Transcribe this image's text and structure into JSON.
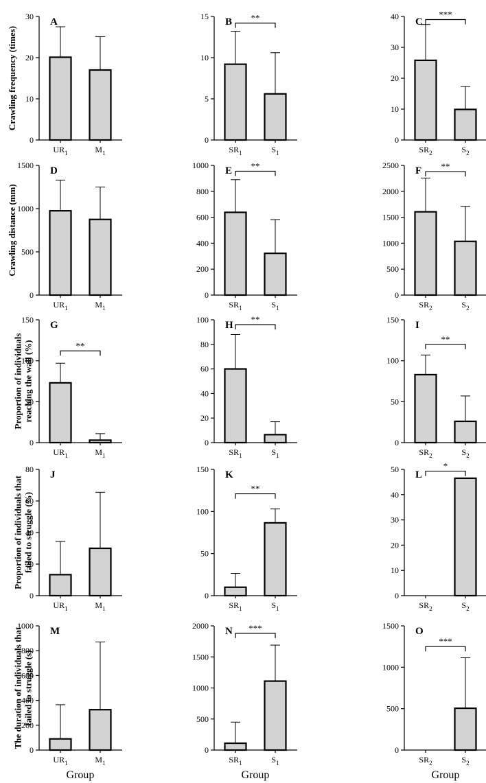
{
  "figure": {
    "row_ylabels": [
      [
        "Crawling frequency (times)"
      ],
      [
        "Crawling distance (mm)"
      ],
      [
        "Proportion of individuals",
        "reaching the wall (%)"
      ],
      [
        "Proportion of individuals that",
        "failed to struggle (%)"
      ],
      [
        "The duration of individuals that",
        "failed to struggle (s)"
      ]
    ],
    "xlabel": "Group",
    "colors": {
      "bar_fill": "#d3d3d3",
      "stroke": "#000000"
    }
  },
  "chart_data": [
    {
      "type": "bar",
      "panel": "A",
      "categories": [
        {
          "base": "UR",
          "sub": "1"
        },
        {
          "base": "M",
          "sub": "1"
        }
      ],
      "values": [
        20.1,
        17.0
      ],
      "errors": [
        7.4,
        8.1
      ],
      "ylim": [
        0,
        30
      ],
      "yticks": [
        0,
        10,
        20,
        30
      ],
      "significance": null
    },
    {
      "type": "bar",
      "panel": "B",
      "categories": [
        {
          "base": "SR",
          "sub": "1"
        },
        {
          "base": "S",
          "sub": "1"
        }
      ],
      "values": [
        9.2,
        5.6
      ],
      "errors": [
        4.0,
        5.0
      ],
      "ylim": [
        0,
        15
      ],
      "yticks": [
        0,
        5,
        10,
        15
      ],
      "significance": {
        "label": "**",
        "y": 14.2
      }
    },
    {
      "type": "bar",
      "panel": "C",
      "categories": [
        {
          "base": "SR",
          "sub": "2"
        },
        {
          "base": "S",
          "sub": "2"
        }
      ],
      "values": [
        25.8,
        9.9
      ],
      "errors": [
        11.6,
        7.4
      ],
      "ylim": [
        0,
        40
      ],
      "yticks": [
        0,
        10,
        20,
        30,
        40
      ],
      "significance": {
        "label": "***",
        "y": 39
      }
    },
    {
      "type": "bar",
      "panel": "D",
      "categories": [
        {
          "base": "UR",
          "sub": "1"
        },
        {
          "base": "M",
          "sub": "1"
        }
      ],
      "values": [
        975,
        875
      ],
      "errors": [
        355,
        375
      ],
      "ylim": [
        0,
        1500
      ],
      "yticks": [
        0,
        500,
        1000,
        1500
      ],
      "significance": null
    },
    {
      "type": "bar",
      "panel": "E",
      "categories": [
        {
          "base": "SR",
          "sub": "1"
        },
        {
          "base": "S",
          "sub": "1"
        }
      ],
      "values": [
        638,
        322
      ],
      "errors": [
        252,
        260
      ],
      "ylim": [
        0,
        1000
      ],
      "yticks": [
        0,
        200,
        400,
        600,
        800,
        1000
      ],
      "significance": {
        "label": "**",
        "y": 955
      }
    },
    {
      "type": "bar",
      "panel": "F",
      "categories": [
        {
          "base": "SR",
          "sub": "2"
        },
        {
          "base": "S",
          "sub": "2"
        }
      ],
      "values": [
        1605,
        1035
      ],
      "errors": [
        650,
        675
      ],
      "ylim": [
        0,
        2500
      ],
      "yticks": [
        0,
        500,
        1000,
        1500,
        2000,
        2500
      ],
      "significance": {
        "label": "**",
        "y": 2380
      }
    },
    {
      "type": "bar",
      "panel": "G",
      "categories": [
        {
          "base": "UR",
          "sub": "1"
        },
        {
          "base": "M",
          "sub": "1"
        }
      ],
      "values": [
        73,
        3
      ],
      "errors": [
        24,
        8
      ],
      "ylim": [
        0,
        150
      ],
      "yticks": [
        0,
        50,
        100,
        150
      ],
      "significance": {
        "label": "**",
        "y": 112
      }
    },
    {
      "type": "bar",
      "panel": "H",
      "categories": [
        {
          "base": "SR",
          "sub": "1"
        },
        {
          "base": "S",
          "sub": "1"
        }
      ],
      "values": [
        60,
        6.5
      ],
      "errors": [
        28,
        10.5
      ],
      "ylim": [
        0,
        100
      ],
      "yticks": [
        0,
        20,
        40,
        60,
        80,
        100
      ],
      "significance": {
        "label": "**",
        "y": 96
      }
    },
    {
      "type": "bar",
      "panel": "I",
      "categories": [
        {
          "base": "SR",
          "sub": "2"
        },
        {
          "base": "S",
          "sub": "2"
        }
      ],
      "values": [
        83,
        26
      ],
      "errors": [
        24,
        31
      ],
      "ylim": [
        0,
        150
      ],
      "yticks": [
        0,
        50,
        100,
        150
      ],
      "significance": {
        "label": "**",
        "y": 120
      }
    },
    {
      "type": "bar",
      "panel": "J",
      "categories": [
        {
          "base": "UR",
          "sub": "1"
        },
        {
          "base": "M",
          "sub": "1"
        }
      ],
      "values": [
        13.3,
        30
      ],
      "errors": [
        21,
        35.5
      ],
      "ylim": [
        0,
        80
      ],
      "yticks": [
        0,
        20,
        40,
        60,
        80
      ],
      "significance": null
    },
    {
      "type": "bar",
      "panel": "K",
      "categories": [
        {
          "base": "SR",
          "sub": "1"
        },
        {
          "base": "S",
          "sub": "1"
        }
      ],
      "values": [
        10,
        86.5
      ],
      "errors": [
        16.5,
        16.5
      ],
      "ylim": [
        0,
        150
      ],
      "yticks": [
        0,
        50,
        100,
        150
      ],
      "significance": {
        "label": "**",
        "y": 121
      }
    },
    {
      "type": "bar",
      "panel": "L",
      "categories": [
        {
          "base": "SR",
          "sub": "2"
        },
        {
          "base": "S",
          "sub": "2"
        }
      ],
      "values": [
        0,
        46.5
      ],
      "errors": [
        0,
        0
      ],
      "ylim": [
        0,
        50
      ],
      "yticks": [
        0,
        10,
        20,
        30,
        40,
        50
      ],
      "significance": {
        "label": "*",
        "y": 49.3
      }
    },
    {
      "type": "bar",
      "panel": "M",
      "categories": [
        {
          "base": "UR",
          "sub": "1"
        },
        {
          "base": "M",
          "sub": "1"
        }
      ],
      "values": [
        90,
        325
      ],
      "errors": [
        275,
        545
      ],
      "ylim": [
        0,
        1000
      ],
      "yticks": [
        0,
        200,
        400,
        600,
        800,
        1000
      ],
      "significance": null
    },
    {
      "type": "bar",
      "panel": "N",
      "categories": [
        {
          "base": "SR",
          "sub": "1"
        },
        {
          "base": "S",
          "sub": "1"
        }
      ],
      "values": [
        110,
        1110
      ],
      "errors": [
        340,
        580
      ],
      "ylim": [
        0,
        2000
      ],
      "yticks": [
        0,
        500,
        1000,
        1500,
        2000
      ],
      "significance": {
        "label": "***",
        "y": 1880
      }
    },
    {
      "type": "bar",
      "panel": "O",
      "categories": [
        {
          "base": "SR",
          "sub": "2"
        },
        {
          "base": "S",
          "sub": "2"
        }
      ],
      "values": [
        0,
        505
      ],
      "errors": [
        0,
        610
      ],
      "ylim": [
        0,
        1500
      ],
      "yticks": [
        0,
        500,
        1000,
        1500
      ],
      "significance": {
        "label": "***",
        "y": 1250
      }
    }
  ]
}
